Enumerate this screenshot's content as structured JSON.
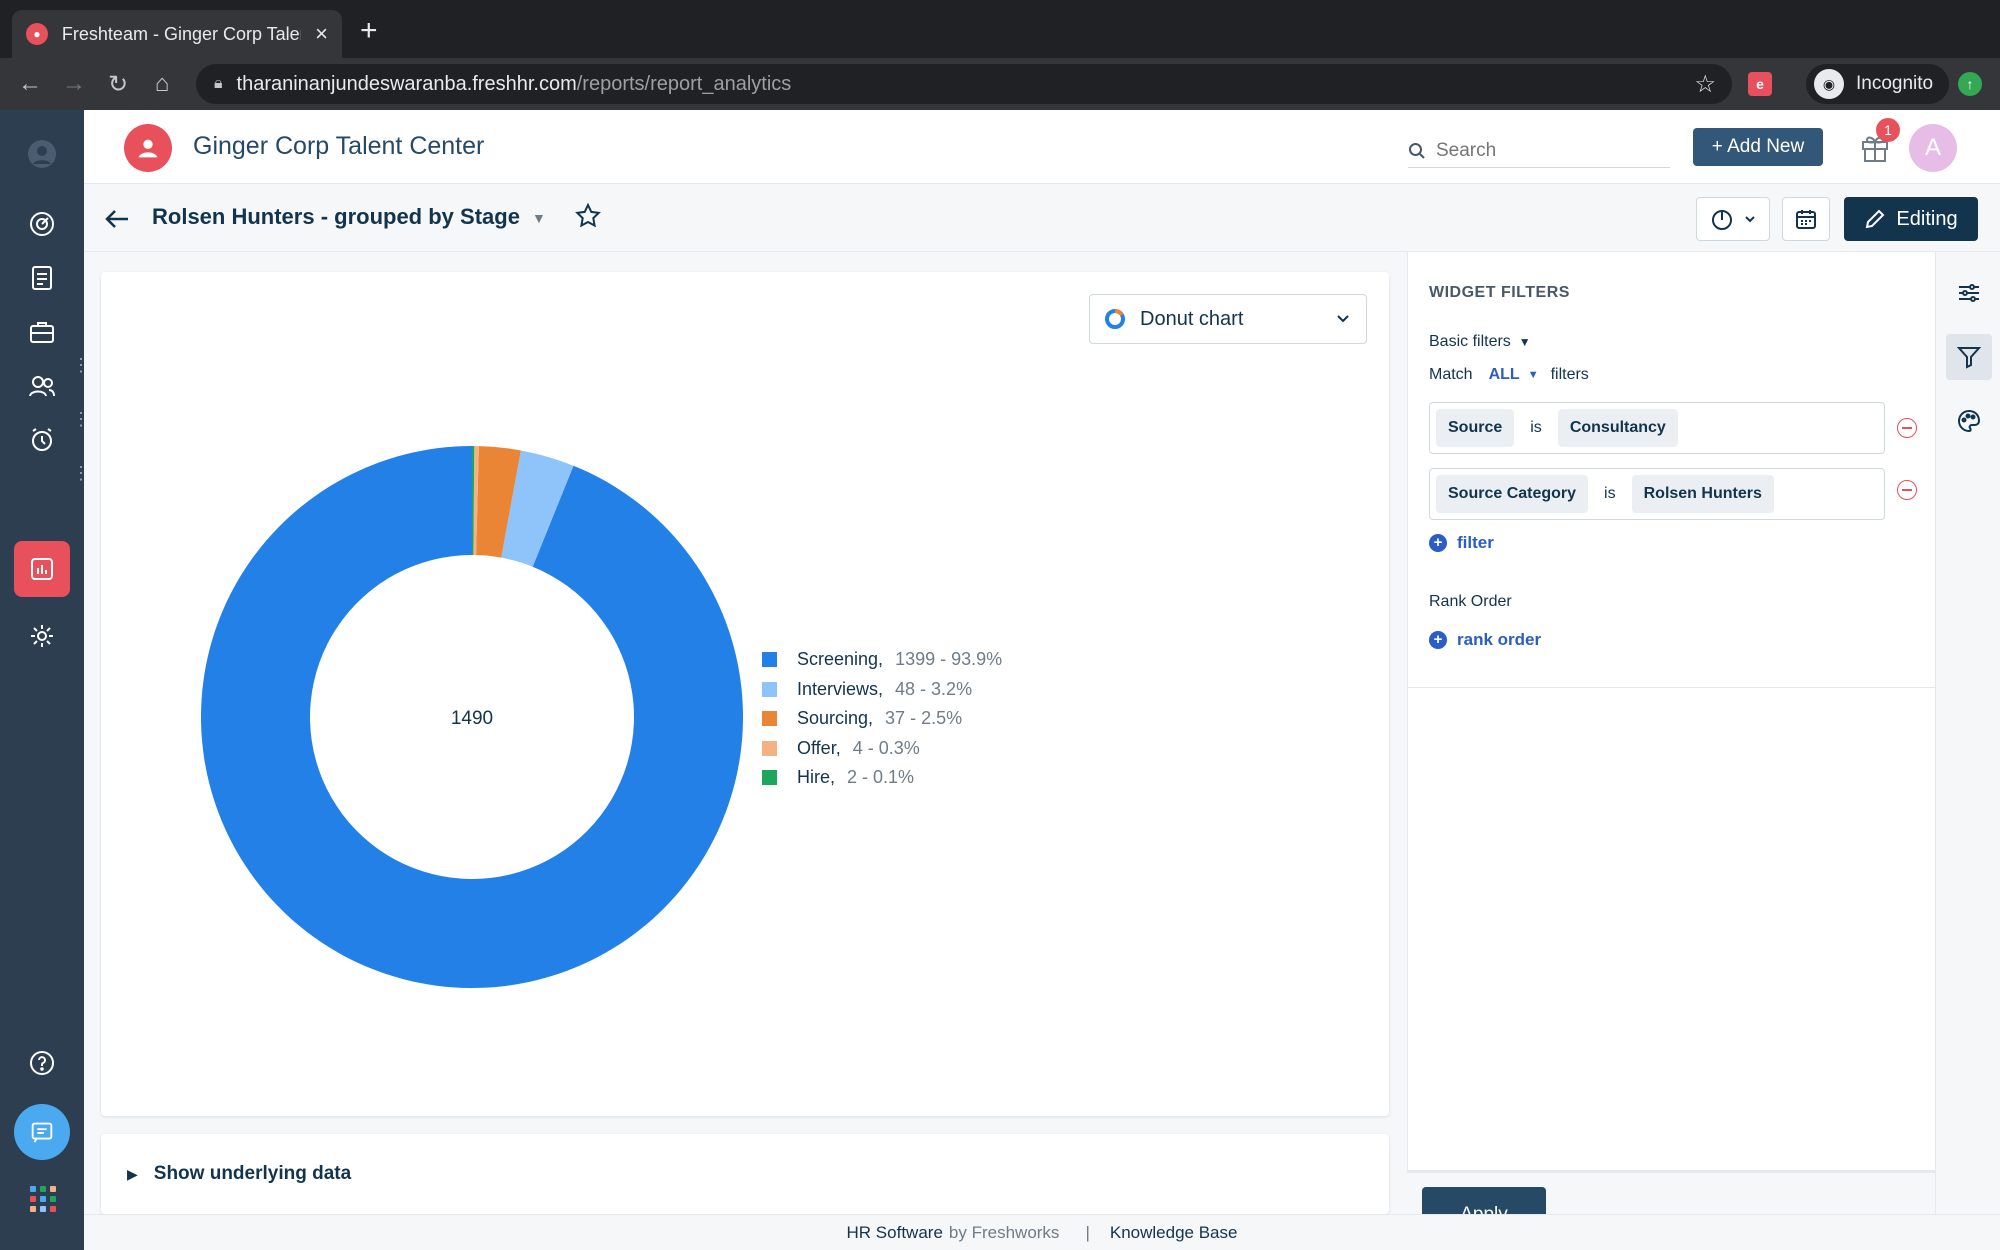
{
  "browser": {
    "tab_title": "Freshteam - Ginger Corp Talent Center",
    "url_host": "tharaninanjundeswaranba.freshhr.com",
    "url_path": "/reports/report_analytics",
    "incognito_label": "Incognito"
  },
  "header": {
    "brand_name": "Ginger Corp Talent Center",
    "search_placeholder": "Search",
    "add_new_label": "+ Add New",
    "notification_count": "1",
    "avatar_initial": "A"
  },
  "report": {
    "title": "Rolsen Hunters - grouped by Stage",
    "editing_label": "Editing",
    "chart_type_label": "Donut chart",
    "show_data_label": "Show underlying data"
  },
  "chart_data": {
    "type": "pie",
    "variant": "donut",
    "center_label": "1490",
    "series": [
      {
        "name": "Screening",
        "value": 1399,
        "display": "1399 - 93.9%",
        "color": "#2380e6"
      },
      {
        "name": "Interviews",
        "value": 48,
        "display": "48 - 3.2%",
        "color": "#8ec4fa"
      },
      {
        "name": "Sourcing",
        "value": 37,
        "display": "37 - 2.5%",
        "color": "#ea8535"
      },
      {
        "name": "Offer",
        "value": 4,
        "display": "4 - 0.3%",
        "color": "#f4b184"
      },
      {
        "name": "Hire",
        "value": 2,
        "display": "2 - 0.1%",
        "color": "#1ea65e"
      }
    ],
    "legend_placement": "right"
  },
  "filters": {
    "heading": "WIDGET FILTERS",
    "basic_filters_label": "Basic filters",
    "match_label": "Match",
    "match_value": "ALL",
    "filters_word": "filters",
    "rows": [
      {
        "field": "Source",
        "operator": "is",
        "value": "Consultancy"
      },
      {
        "field": "Source Category",
        "operator": "is",
        "value": "Rolsen Hunters"
      }
    ],
    "add_filter_label": "filter",
    "rank_order_heading": "Rank Order",
    "add_rank_label": "rank order",
    "apply_label": "Apply"
  },
  "footer": {
    "product": "HR Software",
    "by": "by Freshworks",
    "separator": "|",
    "kb": "Knowledge Base"
  },
  "colors": {
    "brand": "#e8505b",
    "sidebar": "#2c3e50",
    "primary_button": "#12344d",
    "link": "#2c5cc5"
  }
}
